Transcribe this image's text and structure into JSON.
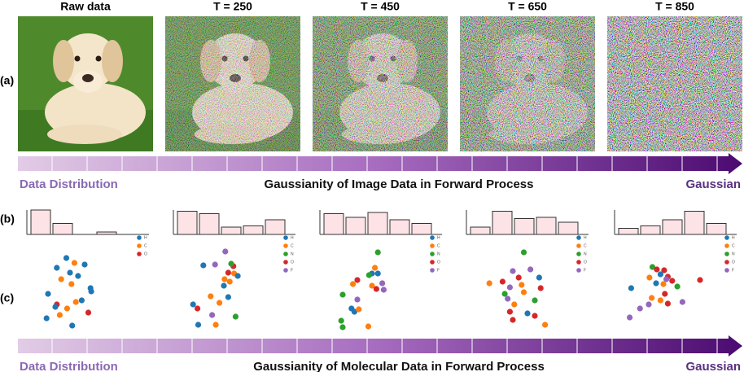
{
  "panel_labels": [
    "(a)",
    "(b)",
    "(c)"
  ],
  "image_row": {
    "columns": [
      "Raw data",
      "T = 250",
      "T = 450",
      "T = 650",
      "T = 850"
    ]
  },
  "image_arrow": {
    "left": "Data Distribution",
    "center": "Gaussianity of Image Data in Forward Process",
    "right": "Gaussian"
  },
  "molecule_arrow": {
    "left": "Data Distribution",
    "center": "Gaussianity of Molecular Data in Forward Process",
    "right": "Gaussian"
  },
  "atom_colors": {
    "H": "#1f77b4",
    "C": "#ff7f0e",
    "N": "#2ca02c",
    "O": "#d62728",
    "F": "#9467bd"
  },
  "histograms": {
    "ylim": [
      0,
      1
    ],
    "bar_color": "#fde2e6",
    "panels": [
      {
        "values": [
          1.0,
          0.45,
          0,
          0.1,
          0
        ]
      },
      {
        "values": [
          0.95,
          0.85,
          0.3,
          0.35,
          0.6
        ]
      },
      {
        "values": [
          0.85,
          0.7,
          0.9,
          0.6,
          0.45
        ]
      },
      {
        "values": [
          0.3,
          0.95,
          0.65,
          0.7,
          0.5
        ]
      },
      {
        "values": [
          0.25,
          0.35,
          0.6,
          0.95,
          0.45
        ]
      }
    ]
  },
  "molecules": {
    "xlim": [
      0,
      10
    ],
    "ylim": [
      0,
      10
    ],
    "panels": [
      {
        "legend": [
          "H",
          "C",
          "O"
        ],
        "points": [
          {
            "atom": "H",
            "x": 3.5,
            "y": 8.8
          },
          {
            "atom": "H",
            "x": 2.2,
            "y": 7.6
          },
          {
            "atom": "C",
            "x": 4.6,
            "y": 8.2
          },
          {
            "atom": "H",
            "x": 6.0,
            "y": 8.0
          },
          {
            "atom": "H",
            "x": 4.0,
            "y": 7.0
          },
          {
            "atom": "C",
            "x": 2.8,
            "y": 6.2
          },
          {
            "atom": "H",
            "x": 5.1,
            "y": 6.6
          },
          {
            "atom": "C",
            "x": 4.2,
            "y": 5.6
          },
          {
            "atom": "H",
            "x": 6.8,
            "y": 5.1
          },
          {
            "atom": "H",
            "x": 1.0,
            "y": 4.4
          },
          {
            "atom": "C",
            "x": 4.8,
            "y": 3.4
          },
          {
            "atom": "H",
            "x": 5.6,
            "y": 3.6
          },
          {
            "atom": "O",
            "x": 2.2,
            "y": 3.1
          },
          {
            "atom": "C",
            "x": 3.6,
            "y": 2.6
          },
          {
            "atom": "O",
            "x": 6.5,
            "y": 2.1
          },
          {
            "atom": "H",
            "x": 0.8,
            "y": 1.4
          },
          {
            "atom": "C",
            "x": 2.6,
            "y": 1.8
          },
          {
            "atom": "H",
            "x": 4.3,
            "y": 0.5
          },
          {
            "atom": "H",
            "x": 6.9,
            "y": 4.7
          },
          {
            "atom": "H",
            "x": 2.0,
            "y": 2.8
          }
        ]
      },
      {
        "legend": [
          "H",
          "C",
          "N",
          "O",
          "F"
        ],
        "points": [
          {
            "atom": "F",
            "x": 5.2,
            "y": 9.6
          },
          {
            "atom": "H",
            "x": 2.2,
            "y": 7.9
          },
          {
            "atom": "F",
            "x": 3.8,
            "y": 8.0
          },
          {
            "atom": "O",
            "x": 6.3,
            "y": 7.8
          },
          {
            "atom": "N",
            "x": 6.0,
            "y": 8.1
          },
          {
            "atom": "O",
            "x": 5.6,
            "y": 7.0
          },
          {
            "atom": "C",
            "x": 6.4,
            "y": 6.9
          },
          {
            "atom": "H",
            "x": 6.9,
            "y": 6.6
          },
          {
            "atom": "C",
            "x": 5.8,
            "y": 5.9
          },
          {
            "atom": "H",
            "x": 5.0,
            "y": 5.4
          },
          {
            "atom": "C",
            "x": 3.2,
            "y": 4.1
          },
          {
            "atom": "H",
            "x": 5.6,
            "y": 4.0
          },
          {
            "atom": "C",
            "x": 4.4,
            "y": 3.3
          },
          {
            "atom": "H",
            "x": 0.8,
            "y": 3.1
          },
          {
            "atom": "O",
            "x": 1.4,
            "y": 2.6
          },
          {
            "atom": "F",
            "x": 3.4,
            "y": 1.8
          },
          {
            "atom": "N",
            "x": 6.6,
            "y": 1.6
          },
          {
            "atom": "H",
            "x": 1.5,
            "y": 0.6
          },
          {
            "atom": "C",
            "x": 3.9,
            "y": 0.6
          },
          {
            "atom": "C",
            "x": 5.1,
            "y": 6.2
          }
        ]
      },
      {
        "legend": [
          "H",
          "C",
          "N",
          "O",
          "F"
        ],
        "points": [
          {
            "atom": "N",
            "x": 5.8,
            "y": 9.5
          },
          {
            "atom": "C",
            "x": 5.4,
            "y": 7.6
          },
          {
            "atom": "H",
            "x": 5.0,
            "y": 6.9
          },
          {
            "atom": "N",
            "x": 4.6,
            "y": 6.7
          },
          {
            "atom": "O",
            "x": 3.0,
            "y": 6.1
          },
          {
            "atom": "H",
            "x": 5.8,
            "y": 6.9
          },
          {
            "atom": "F",
            "x": 6.4,
            "y": 5.7
          },
          {
            "atom": "C",
            "x": 2.4,
            "y": 5.6
          },
          {
            "atom": "C",
            "x": 5.0,
            "y": 5.4
          },
          {
            "atom": "O",
            "x": 5.6,
            "y": 5.0
          },
          {
            "atom": "N",
            "x": 1.0,
            "y": 4.3
          },
          {
            "atom": "F",
            "x": 3.0,
            "y": 3.7
          },
          {
            "atom": "H",
            "x": 2.2,
            "y": 2.6
          },
          {
            "atom": "H",
            "x": 2.6,
            "y": 2.2
          },
          {
            "atom": "C",
            "x": 3.2,
            "y": 2.5
          },
          {
            "atom": "N",
            "x": 0.8,
            "y": 1.1
          },
          {
            "atom": "N",
            "x": 1.0,
            "y": 0.3
          },
          {
            "atom": "C",
            "x": 4.5,
            "y": 0.4
          },
          {
            "atom": "F",
            "x": 6.6,
            "y": 4.9
          }
        ]
      },
      {
        "legend": [
          "H",
          "C",
          "N",
          "O",
          "F"
        ],
        "points": [
          {
            "atom": "N",
            "x": 5.5,
            "y": 9.5
          },
          {
            "atom": "F",
            "x": 4.0,
            "y": 7.2
          },
          {
            "atom": "F",
            "x": 6.4,
            "y": 7.4
          },
          {
            "atom": "O",
            "x": 4.8,
            "y": 6.4
          },
          {
            "atom": "H",
            "x": 7.6,
            "y": 6.4
          },
          {
            "atom": "O",
            "x": 2.6,
            "y": 5.9
          },
          {
            "atom": "C",
            "x": 0.8,
            "y": 5.7
          },
          {
            "atom": "F",
            "x": 3.6,
            "y": 5.2
          },
          {
            "atom": "C",
            "x": 5.2,
            "y": 5.5
          },
          {
            "atom": "O",
            "x": 7.8,
            "y": 5.1
          },
          {
            "atom": "N",
            "x": 2.9,
            "y": 4.4
          },
          {
            "atom": "C",
            "x": 5.5,
            "y": 4.6
          },
          {
            "atom": "F",
            "x": 3.3,
            "y": 3.8
          },
          {
            "atom": "N",
            "x": 7.0,
            "y": 3.6
          },
          {
            "atom": "C",
            "x": 4.2,
            "y": 3.1
          },
          {
            "atom": "O",
            "x": 3.6,
            "y": 2.2
          },
          {
            "atom": "H",
            "x": 6.0,
            "y": 2.0
          },
          {
            "atom": "O",
            "x": 7.0,
            "y": 1.7
          },
          {
            "atom": "C",
            "x": 8.4,
            "y": 0.6
          },
          {
            "atom": "O",
            "x": 4.0,
            "y": 1.2
          }
        ]
      },
      {
        "legend": [
          "H",
          "C",
          "N",
          "O",
          "F"
        ],
        "points": [
          {
            "atom": "N",
            "x": 3.5,
            "y": 7.7
          },
          {
            "atom": "O",
            "x": 4.1,
            "y": 7.4
          },
          {
            "atom": "O",
            "x": 5.1,
            "y": 7.3
          },
          {
            "atom": "H",
            "x": 4.6,
            "y": 6.8
          },
          {
            "atom": "C",
            "x": 3.1,
            "y": 6.4
          },
          {
            "atom": "O",
            "x": 5.6,
            "y": 6.5
          },
          {
            "atom": "H",
            "x": 4.0,
            "y": 5.7
          },
          {
            "atom": "O",
            "x": 6.2,
            "y": 6.0
          },
          {
            "atom": "C",
            "x": 5.0,
            "y": 5.6
          },
          {
            "atom": "F",
            "x": 5.4,
            "y": 6.2
          },
          {
            "atom": "H",
            "x": 0.6,
            "y": 5.1
          },
          {
            "atom": "N",
            "x": 6.9,
            "y": 5.3
          },
          {
            "atom": "O",
            "x": 10.0,
            "y": 6.1
          },
          {
            "atom": "O",
            "x": 5.2,
            "y": 4.4
          },
          {
            "atom": "C",
            "x": 3.4,
            "y": 3.9
          },
          {
            "atom": "F",
            "x": 3.0,
            "y": 3.1
          },
          {
            "atom": "C",
            "x": 4.6,
            "y": 3.6
          },
          {
            "atom": "O",
            "x": 5.6,
            "y": 3.2
          },
          {
            "atom": "F",
            "x": 1.8,
            "y": 2.6
          },
          {
            "atom": "F",
            "x": 0.4,
            "y": 1.5
          },
          {
            "atom": "F",
            "x": 7.6,
            "y": 3.4
          }
        ]
      }
    ]
  }
}
